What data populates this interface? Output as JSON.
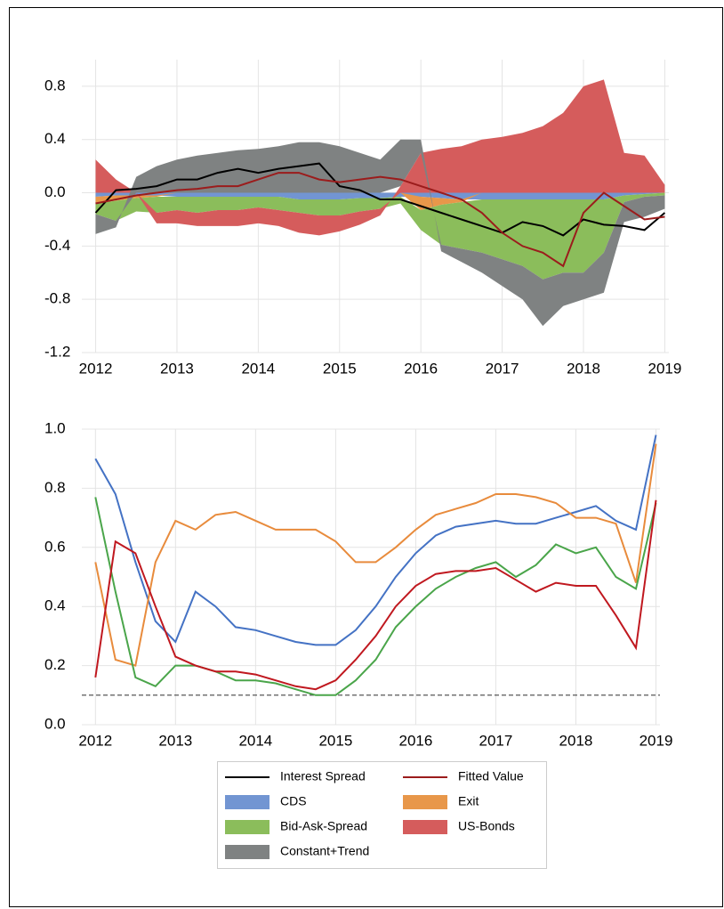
{
  "chart_data": [
    {
      "type": "stacked_area",
      "legend": "bottom",
      "grid": true,
      "x": [
        2012,
        2012.25,
        2012.5,
        2012.75,
        2013,
        2013.25,
        2013.5,
        2013.75,
        2014,
        2014.25,
        2014.5,
        2014.75,
        2015,
        2015.25,
        2015.5,
        2015.75,
        2016,
        2016.25,
        2016.5,
        2016.75,
        2017,
        2017.25,
        2017.5,
        2017.75,
        2018,
        2018.25,
        2018.5,
        2018.75,
        2019
      ],
      "xlim": [
        2011.83,
        2019.05
      ],
      "xticks": [
        2012,
        2013,
        2014,
        2015,
        2016,
        2017,
        2018,
        2019
      ],
      "ylim": [
        -1.2,
        1.0
      ],
      "yticks": [
        -1.2,
        -0.8,
        -0.4,
        {
          "value": 0,
          "label": "0.0"
        },
        0.4,
        0.8
      ],
      "series": [
        {
          "name": "Interest Spread",
          "kind": "line",
          "color": "#000000",
          "values": [
            -0.15,
            0.02,
            0.03,
            0.05,
            0.1,
            0.1,
            0.15,
            0.18,
            0.15,
            0.18,
            0.2,
            0.22,
            0.05,
            0.02,
            -0.05,
            -0.05,
            -0.1,
            -0.15,
            -0.2,
            -0.25,
            -0.3,
            -0.22,
            -0.25,
            -0.32,
            -0.2,
            -0.24,
            -0.25,
            -0.28,
            -0.15
          ]
        },
        {
          "name": "Fitted Value",
          "kind": "line",
          "color": "#9b1c1c",
          "values": [
            -0.08,
            -0.05,
            -0.02,
            0.0,
            0.02,
            0.03,
            0.05,
            0.05,
            0.1,
            0.15,
            0.15,
            0.1,
            0.08,
            0.1,
            0.12,
            0.1,
            0.05,
            0.0,
            -0.05,
            -0.15,
            -0.3,
            -0.4,
            -0.45,
            -0.55,
            -0.15,
            0.0,
            -0.1,
            -0.2,
            -0.18
          ]
        },
        {
          "name": "CDS",
          "kind": "area",
          "color": "#7295d2",
          "values": [
            -0.03,
            -0.02,
            -0.02,
            -0.02,
            -0.03,
            -0.03,
            -0.03,
            -0.03,
            -0.03,
            -0.03,
            -0.05,
            -0.05,
            -0.05,
            -0.04,
            -0.04,
            -0.03,
            -0.03,
            -0.04,
            -0.05,
            -0.05,
            -0.05,
            -0.05,
            -0.05,
            -0.05,
            -0.05,
            -0.05,
            -0.02,
            -0.01,
            0
          ]
        },
        {
          "name": "Exit",
          "kind": "area",
          "color": "#e8974a",
          "values": [
            -0.05,
            -0.04,
            -0.02,
            -0.01,
            0,
            0,
            0,
            0,
            0,
            0,
            0,
            0,
            0,
            0,
            0,
            0,
            -0.1,
            -0.05,
            -0.02,
            0,
            0,
            0,
            0,
            0,
            0,
            0,
            0,
            0,
            0
          ]
        },
        {
          "name": "Bid-Ask-Spread",
          "kind": "area",
          "color": "#8bbd5b",
          "values": [
            -0.08,
            -0.15,
            -0.1,
            -0.12,
            -0.1,
            -0.12,
            -0.1,
            -0.1,
            -0.08,
            -0.1,
            -0.1,
            -0.12,
            -0.12,
            -0.1,
            -0.08,
            -0.05,
            -0.15,
            -0.3,
            -0.35,
            -0.4,
            -0.45,
            -0.5,
            -0.6,
            -0.55,
            -0.55,
            -0.4,
            -0.05,
            -0.02,
            -0.02
          ]
        },
        {
          "name": "US-Bonds",
          "kind": "area",
          "color": "#d55c5c",
          "values": [
            0.25,
            0.1,
            0,
            -0.08,
            -0.1,
            -0.1,
            -0.12,
            -0.12,
            -0.12,
            -0.12,
            -0.15,
            -0.15,
            -0.12,
            -0.1,
            -0.05,
            0.05,
            0.3,
            0.33,
            0.35,
            0.4,
            0.42,
            0.45,
            0.5,
            0.6,
            0.8,
            0.85,
            0.3,
            0.28,
            0.06
          ]
        },
        {
          "name": "Constant+Trend",
          "kind": "area",
          "color": "#7f8282",
          "values": [
            -0.15,
            -0.05,
            0.12,
            0.2,
            0.25,
            0.28,
            0.3,
            0.32,
            0.33,
            0.35,
            0.38,
            0.38,
            0.35,
            0.3,
            0.25,
            0.35,
            0.1,
            -0.05,
            -0.1,
            -0.15,
            -0.2,
            -0.25,
            -0.35,
            -0.25,
            -0.2,
            -0.3,
            -0.15,
            -0.15,
            -0.1
          ]
        }
      ]
    },
    {
      "type": "line",
      "grid": true,
      "reference_line": 0.1,
      "x": [
        2012,
        2012.25,
        2012.5,
        2012.75,
        2013,
        2013.25,
        2013.5,
        2013.75,
        2014,
        2014.25,
        2014.5,
        2014.75,
        2015,
        2015.25,
        2015.5,
        2015.75,
        2016,
        2016.25,
        2016.5,
        2016.75,
        2017,
        2017.25,
        2017.5,
        2017.75,
        2018,
        2018.25,
        2018.5,
        2018.75,
        2019
      ],
      "xlim": [
        2011.83,
        2019.05
      ],
      "xticks": [
        2012,
        2013,
        2014,
        2015,
        2016,
        2017,
        2018,
        2019
      ],
      "ylim": [
        0,
        1.0
      ],
      "yticks": [
        {
          "value": 0,
          "label": "0.0"
        },
        0.2,
        0.4,
        0.6,
        0.8,
        {
          "value": 1,
          "label": "1.0"
        }
      ],
      "series": [
        {
          "color": "#4472c4",
          "values": [
            0.9,
            0.78,
            0.55,
            0.35,
            0.28,
            0.45,
            0.4,
            0.33,
            0.32,
            0.3,
            0.28,
            0.27,
            0.27,
            0.32,
            0.4,
            0.5,
            0.58,
            0.64,
            0.67,
            0.68,
            0.69,
            0.68,
            0.68,
            0.7,
            0.72,
            0.74,
            0.69,
            0.66,
            0.98
          ]
        },
        {
          "color": "#e88b3c",
          "values": [
            0.55,
            0.22,
            0.2,
            0.55,
            0.69,
            0.66,
            0.71,
            0.72,
            0.69,
            0.66,
            0.66,
            0.66,
            0.62,
            0.55,
            0.55,
            0.6,
            0.66,
            0.71,
            0.73,
            0.75,
            0.78,
            0.78,
            0.77,
            0.75,
            0.7,
            0.7,
            0.68,
            0.48,
            0.95
          ]
        },
        {
          "color": "#4aa54a",
          "values": [
            0.77,
            0.45,
            0.16,
            0.13,
            0.2,
            0.2,
            0.18,
            0.15,
            0.15,
            0.14,
            0.12,
            0.1,
            0.1,
            0.15,
            0.22,
            0.33,
            0.4,
            0.46,
            0.5,
            0.53,
            0.55,
            0.5,
            0.54,
            0.61,
            0.58,
            0.6,
            0.5,
            0.46,
            0.75
          ]
        },
        {
          "color": "#c0181f",
          "values": [
            0.16,
            0.62,
            0.58,
            0.4,
            0.23,
            0.2,
            0.18,
            0.18,
            0.17,
            0.15,
            0.13,
            0.12,
            0.15,
            0.22,
            0.3,
            0.4,
            0.47,
            0.51,
            0.52,
            0.52,
            0.53,
            0.49,
            0.45,
            0.48,
            0.47,
            0.47,
            0.37,
            0.26,
            0.76
          ]
        }
      ]
    }
  ]
}
